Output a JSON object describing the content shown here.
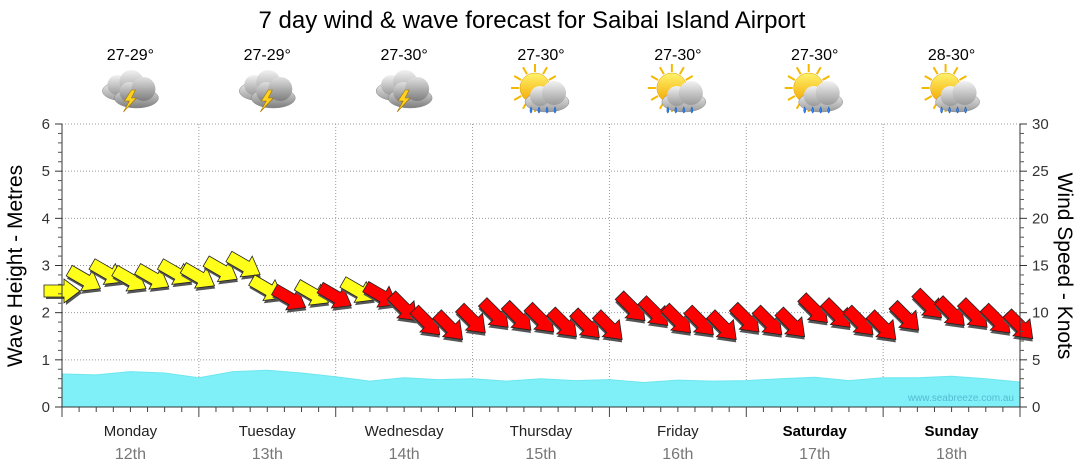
{
  "chart_data": {
    "type": "area",
    "title": "7 day wind & wave forecast for Saibai Island Airport",
    "ylabel": "Wave Height - Metres",
    "y2label": "Wind Speed - Knots",
    "ylim": [
      0,
      6
    ],
    "y2lim": [
      0,
      30
    ],
    "yticks": [
      "0",
      "1",
      "2",
      "3",
      "4",
      "5",
      "6"
    ],
    "y2ticks": [
      "0",
      "5",
      "10",
      "15",
      "20",
      "25",
      "30"
    ],
    "grid": true,
    "days": [
      {
        "name": "Monday",
        "date": "12th",
        "temp": "27-29°",
        "icon": "thunderstorm-icon",
        "bold": false
      },
      {
        "name": "Tuesday",
        "date": "13th",
        "temp": "27-29°",
        "icon": "thunderstorm-icon",
        "bold": false
      },
      {
        "name": "Wednesday",
        "date": "14th",
        "temp": "27-30°",
        "icon": "thunderstorm-icon",
        "bold": false
      },
      {
        "name": "Thursday",
        "date": "15th",
        "temp": "27-30°",
        "icon": "sun-showers-icon",
        "bold": false
      },
      {
        "name": "Friday",
        "date": "16th",
        "temp": "27-30°",
        "icon": "sun-showers-icon",
        "bold": false
      },
      {
        "name": "Saturday",
        "date": "17th",
        "temp": "27-30°",
        "icon": "sun-showers-icon",
        "bold": true
      },
      {
        "name": "Sunday",
        "date": "18th",
        "temp": "28-30°",
        "icon": "sun-showers-icon",
        "bold": true
      }
    ],
    "wave_series": {
      "name": "Wave Height",
      "unit": "m",
      "hours": [
        0,
        6,
        12,
        18,
        24,
        30,
        36,
        42,
        48,
        54,
        60,
        66,
        72,
        78,
        84,
        90,
        96,
        102,
        108,
        114,
        120,
        126,
        132,
        138,
        144,
        150,
        156,
        162,
        168
      ],
      "values": [
        0.7,
        0.68,
        0.75,
        0.72,
        0.62,
        0.75,
        0.78,
        0.72,
        0.64,
        0.55,
        0.62,
        0.58,
        0.6,
        0.55,
        0.6,
        0.56,
        0.58,
        0.52,
        0.57,
        0.55,
        0.56,
        0.6,
        0.63,
        0.56,
        0.62,
        0.62,
        0.65,
        0.6,
        0.53
      ]
    },
    "wind_series": {
      "name": "Wind Speed",
      "unit": "knots",
      "hours": [
        0,
        4,
        8,
        12,
        16,
        20,
        24,
        28,
        32,
        36,
        40,
        44,
        48,
        52,
        56,
        60,
        64,
        68,
        72,
        76,
        80,
        84,
        88,
        92,
        96,
        100,
        104,
        108,
        112,
        116,
        120,
        124,
        128,
        132,
        136,
        140,
        144,
        148,
        152,
        156,
        160,
        164,
        168
      ],
      "speed": [
        12.3,
        13.5,
        14.2,
        13.5,
        13.7,
        14.2,
        13.8,
        14.5,
        15,
        12.5,
        11.5,
        12,
        11.7,
        12.3,
        11.8,
        10.5,
        9,
        8.5,
        9.2,
        9.8,
        9.5,
        9.3,
        8.8,
        8.7,
        8.5,
        10.5,
        10,
        9.2,
        9,
        8.5,
        9.3,
        9,
        8.8,
        10.3,
        9.8,
        9,
        8.5,
        9.5,
        10.8,
        10,
        9.8,
        9.2,
        8.6
      ],
      "direction_deg": [
        270,
        300,
        300,
        300,
        300,
        300,
        300,
        300,
        300,
        300,
        300,
        300,
        300,
        300,
        300,
        315,
        315,
        315,
        315,
        315,
        315,
        315,
        315,
        315,
        315,
        315,
        315,
        315,
        315,
        315,
        315,
        315,
        315,
        315,
        315,
        315,
        315,
        315,
        315,
        315,
        315,
        315,
        315
      ],
      "color_scale": {
        "low": "#ffff1a",
        "high": "#ff0000",
        "threshold_knots": 12
      }
    },
    "credit": "www.seabreeze.com.au"
  }
}
